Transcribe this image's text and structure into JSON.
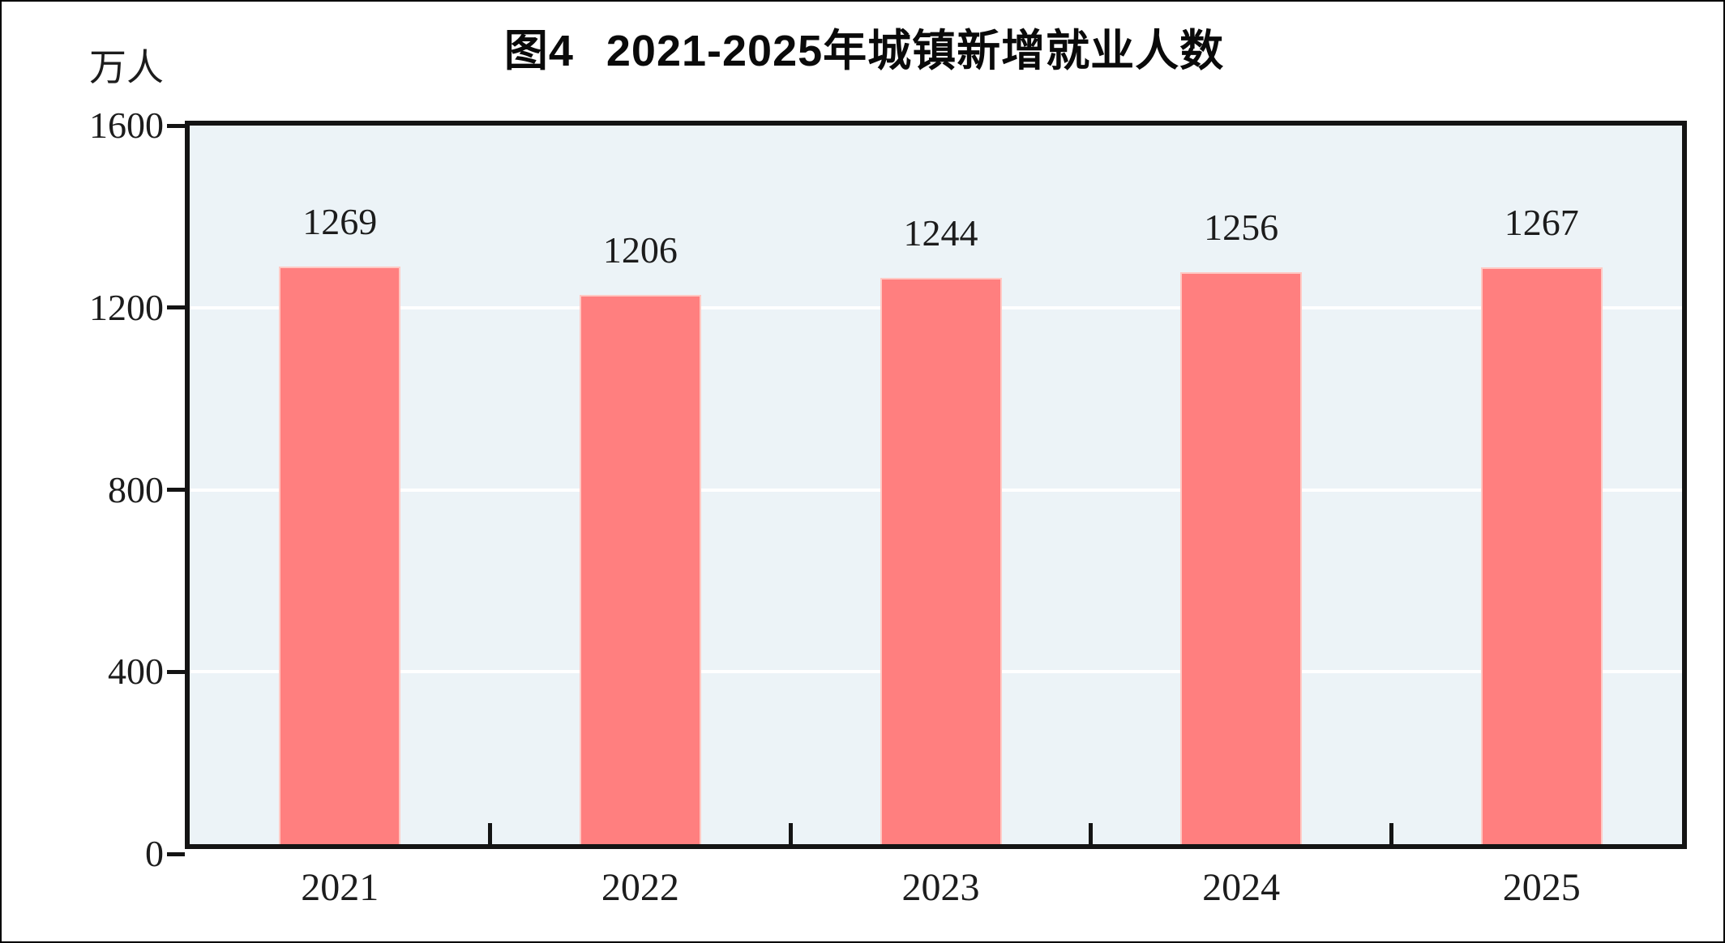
{
  "window": {
    "frame_color": "#000000",
    "page_background": "#ffffff"
  },
  "chart_data": {
    "type": "bar",
    "figure_label": "图4",
    "title": "2021-2025年城镇新增就业人数",
    "unit_label": "万人",
    "categories": [
      "2021",
      "2022",
      "2023",
      "2024",
      "2025"
    ],
    "values": [
      1269,
      1206,
      1244,
      1256,
      1267
    ],
    "series": [
      {
        "name": "城镇新增就业人数",
        "values": [
          1269,
          1206,
          1244,
          1256,
          1267
        ]
      }
    ],
    "xlabel": "",
    "ylabel": "万人",
    "ylim": [
      0,
      1600
    ],
    "yticks": [
      1600,
      1200,
      800,
      400,
      0
    ],
    "gridline_values": [
      400,
      800,
      1200
    ],
    "grid": "horizontal",
    "legend": "none",
    "data_labels_shown": true,
    "colors": {
      "bar_fill": "#ff7f7f",
      "bar_edge": "#ffc9c4",
      "plot_background": "#ecf3f7",
      "gridline": "#ffffff",
      "axis_frame": "#141414",
      "text": "#1c1c1c"
    }
  }
}
